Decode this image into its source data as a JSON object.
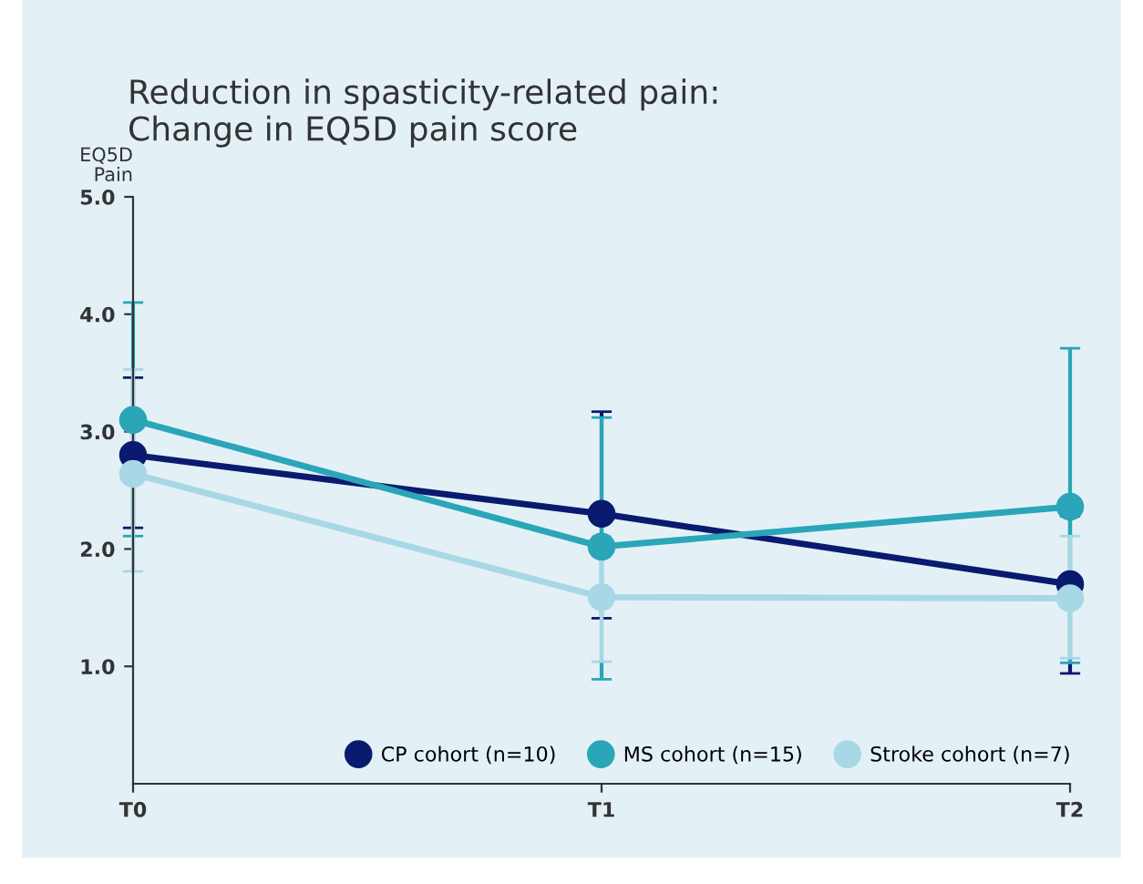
{
  "chart_data": {
    "type": "line",
    "title": "Reduction in spasticity-related pain:\nChange in EQ5D pain score",
    "ylabel": "EQ5D\nPain",
    "categories": [
      "T0",
      "T1",
      "T2"
    ],
    "ylim": [
      0,
      5
    ],
    "yticks": [
      {
        "value": 1,
        "label": "1.0"
      },
      {
        "value": 2,
        "label": "2.0"
      },
      {
        "value": 3,
        "label": "3.0"
      },
      {
        "value": 4,
        "label": "4.0"
      },
      {
        "value": 5,
        "label": "5.0"
      }
    ],
    "series": [
      {
        "name": "CP cohort (n=10)",
        "color": "#0a1a6e",
        "values": [
          2.8,
          2.3,
          1.7
        ],
        "errors": [
          [
            2.18,
            3.46
          ],
          [
            1.41,
            3.17
          ],
          [
            0.94,
            2.28
          ]
        ]
      },
      {
        "name": "MS cohort (n=15)",
        "color": "#2aa6b8",
        "values": [
          3.1,
          2.02,
          2.36
        ],
        "errors": [
          [
            2.11,
            4.1
          ],
          [
            0.89,
            3.12
          ],
          [
            1.03,
            3.71
          ]
        ]
      },
      {
        "name": "Stroke cohort (n=7)",
        "color": "#a8d8e6",
        "values": [
          2.64,
          1.59,
          1.58
        ],
        "errors": [
          [
            1.81,
            3.53
          ],
          [
            1.04,
            2.11
          ],
          [
            1.07,
            2.11
          ]
        ]
      }
    ],
    "marker": "circle",
    "line_style": "solid",
    "grid": false,
    "legend": "bottom right"
  }
}
